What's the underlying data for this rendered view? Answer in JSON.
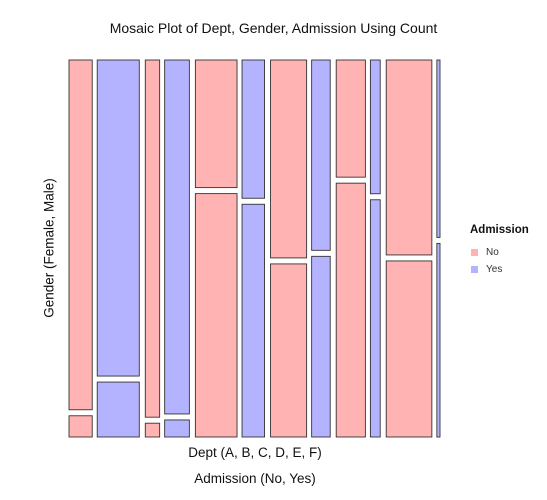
{
  "chart_data": {
    "type": "mosaic",
    "title": "Mosaic Plot of Dept, Gender, Admission Using Count",
    "xlabel": "Dept (A, B, C, D, E, F)",
    "x2label": "Admission (No, Yes)",
    "ylabel": "Gender (Female, Male)",
    "dept_values": [
      "A",
      "B",
      "C",
      "D",
      "E",
      "F"
    ],
    "gender_values": [
      "Female",
      "Male"
    ],
    "admission_values": [
      "No",
      "Yes"
    ],
    "legend": {
      "title": "Admission",
      "position": "right",
      "entries": [
        {
          "label": "No",
          "color": "#ffb3b3"
        },
        {
          "label": "Yes",
          "color": "#b3b3ff"
        }
      ]
    },
    "counts": {
      "A": {
        "Male": {
          "No": 313,
          "Yes": 512
        },
        "Female": {
          "No": 19,
          "Yes": 89
        }
      },
      "B": {
        "Male": {
          "No": 207,
          "Yes": 353
        },
        "Female": {
          "No": 8,
          "Yes": 17
        }
      },
      "C": {
        "Male": {
          "No": 205,
          "Yes": 120
        },
        "Female": {
          "No": 391,
          "Yes": 202
        }
      },
      "D": {
        "Male": {
          "No": 279,
          "Yes": 138
        },
        "Female": {
          "No": 244,
          "Yes": 131
        }
      },
      "E": {
        "Male": {
          "No": 138,
          "Yes": 53
        },
        "Female": {
          "No": 299,
          "Yes": 94
        }
      },
      "F": {
        "Male": {
          "No": 351,
          "Yes": 22
        },
        "Female": {
          "No": 317,
          "Yes": 24
        }
      }
    }
  }
}
